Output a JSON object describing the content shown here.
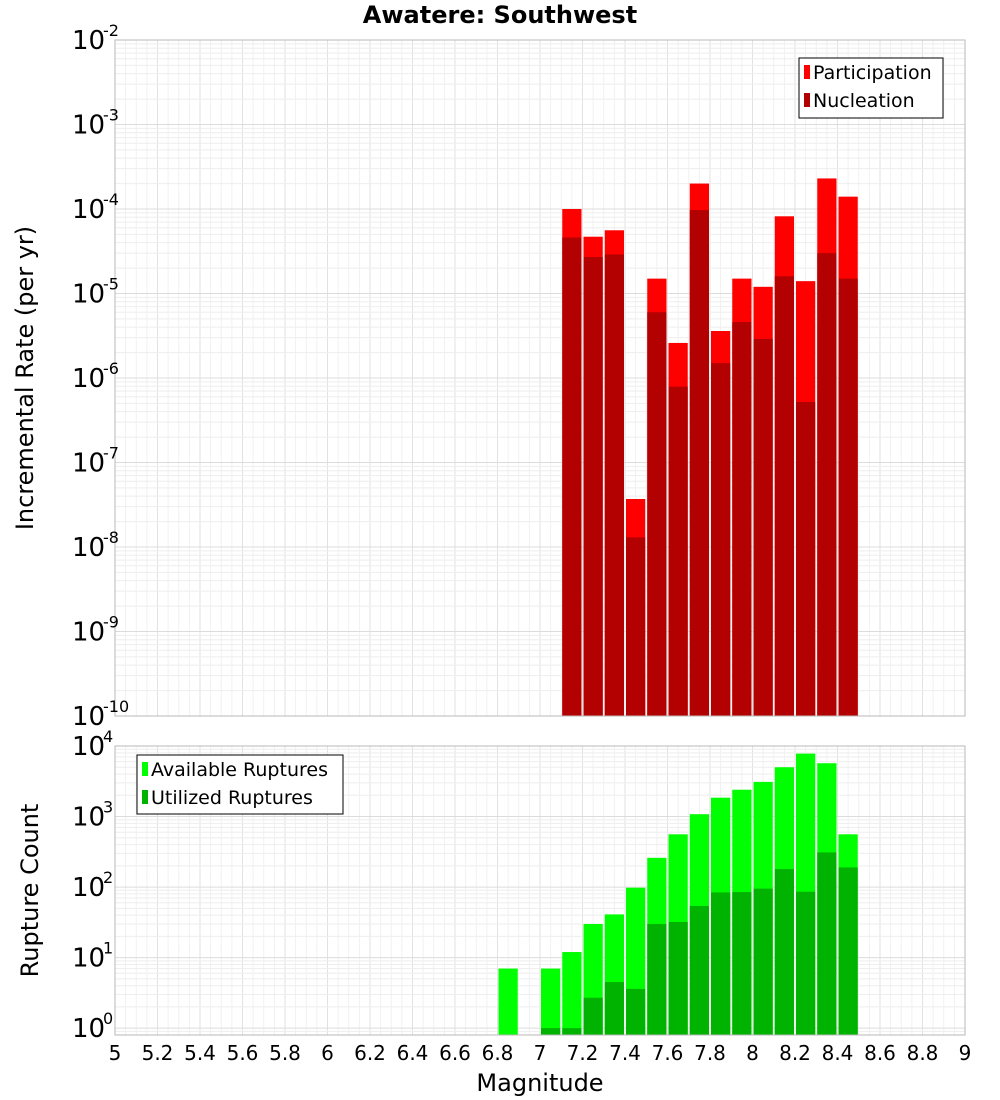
{
  "title": "Awatere: Southwest",
  "xlabel": "Magnitude",
  "chart_data": [
    {
      "type": "bar",
      "ylabel": "Incremental Rate (per yr)",
      "yscale": "log",
      "ylim": [
        1e-10,
        0.01
      ],
      "y_ticks": [
        {
          "base": "10",
          "exp": "-10"
        },
        {
          "base": "10",
          "exp": "-9"
        },
        {
          "base": "10",
          "exp": "-8"
        },
        {
          "base": "10",
          "exp": "-7"
        },
        {
          "base": "10",
          "exp": "-6"
        },
        {
          "base": "10",
          "exp": "-5"
        },
        {
          "base": "10",
          "exp": "-4"
        },
        {
          "base": "10",
          "exp": "-3"
        },
        {
          "base": "10",
          "exp": "-2"
        }
      ],
      "legend": "top-right",
      "grid": true,
      "x": [
        7.15,
        7.25,
        7.35,
        7.45,
        7.55,
        7.65,
        7.75,
        7.85,
        7.95,
        8.05,
        8.15,
        8.25,
        8.35,
        8.45
      ],
      "series": [
        {
          "name": "Participation",
          "color": "#ff0000",
          "values": [
            0.0001,
            4.7e-05,
            5.6e-05,
            3.7e-08,
            1.5e-05,
            2.6e-06,
            0.0002,
            3.6e-06,
            1.5e-05,
            1.2e-05,
            8.2e-05,
            1.4e-05,
            0.00023,
            0.00014
          ]
        },
        {
          "name": "Nucleation",
          "color": "#b30000",
          "values": [
            4.6e-05,
            2.7e-05,
            2.9e-05,
            1.3e-08,
            6e-06,
            7.9e-07,
            9.7e-05,
            1.5e-06,
            4.6e-06,
            2.9e-06,
            1.6e-05,
            5.2e-07,
            3e-05,
            1.5e-05
          ]
        }
      ]
    },
    {
      "type": "bar",
      "ylabel": "Rupture Count",
      "yscale": "log",
      "ylim": [
        0.8,
        10000
      ],
      "y_ticks": [
        {
          "base": "10",
          "exp": "0"
        },
        {
          "base": "10",
          "exp": "1"
        },
        {
          "base": "10",
          "exp": "2"
        },
        {
          "base": "10",
          "exp": "3"
        },
        {
          "base": "10",
          "exp": "4"
        }
      ],
      "legend": "top-left",
      "grid": true,
      "x": [
        6.85,
        7.05,
        7.15,
        7.25,
        7.35,
        7.45,
        7.55,
        7.65,
        7.75,
        7.85,
        7.95,
        8.05,
        8.15,
        8.25,
        8.35,
        8.45
      ],
      "series": [
        {
          "name": "Available Ruptures",
          "color": "#00ff00",
          "values": [
            7,
            7,
            12,
            30,
            41,
            98,
            260,
            560,
            1080,
            1850,
            2400,
            3100,
            5000,
            7800,
            5700,
            560
          ]
        },
        {
          "name": "Utilized Ruptures",
          "color": "#00b300",
          "values": [
            0,
            1,
            1,
            2.7,
            4.5,
            3.6,
            30,
            32,
            54,
            84,
            85,
            95,
            180,
            86,
            310,
            190
          ]
        }
      ]
    }
  ],
  "x_ticks": [
    "5",
    "5.2",
    "5.4",
    "5.6",
    "5.8",
    "6",
    "6.2",
    "6.4",
    "6.6",
    "6.8",
    "7",
    "7.2",
    "7.4",
    "7.6",
    "7.8",
    "8",
    "8.2",
    "8.4",
    "8.6",
    "8.8",
    "9"
  ],
  "xlim": [
    5,
    9
  ],
  "bar_width": 0.1
}
